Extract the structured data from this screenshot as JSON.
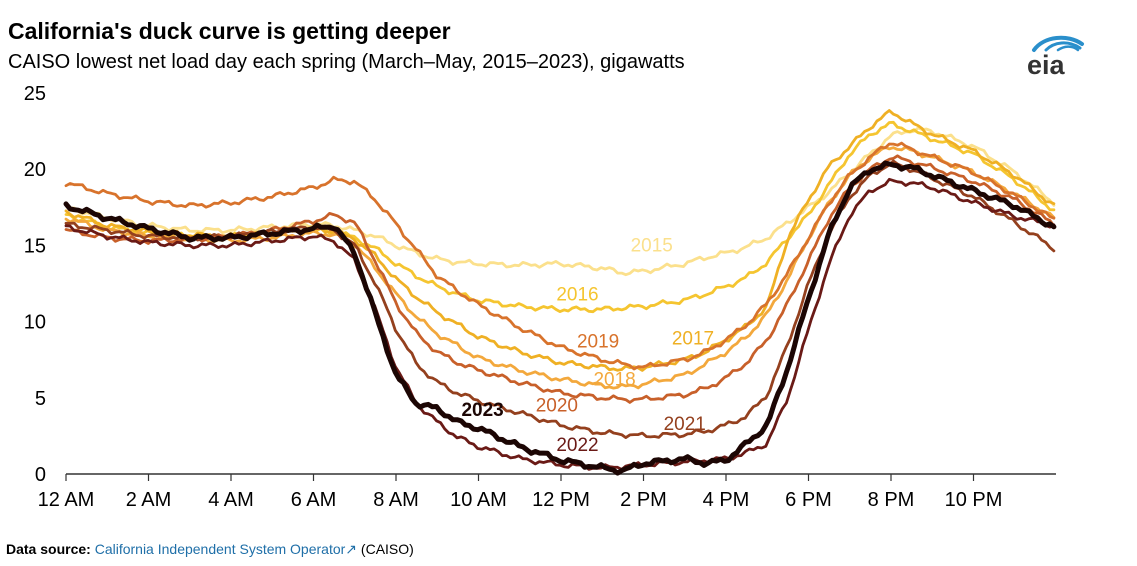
{
  "title": "California's duck curve is getting deeper",
  "subtitle": "CAISO lowest net load day each spring (March–May, 2015–2023), gigawatts",
  "logo_text": "eia",
  "source": {
    "label": "Data source:",
    "link_text": "California Independent System Operator",
    "suffix": "(CAISO)"
  },
  "colors": {
    "2015": "#fbe08c",
    "2016": "#f5c530",
    "2017": "#efb024",
    "2018": "#f3a83c",
    "2019": "#d8732c",
    "2020": "#c8602a",
    "2021": "#94401e",
    "2022": "#6a1a16",
    "2023": "#1c0604",
    "logo": "#2a8fcb"
  },
  "chart_data": {
    "type": "line",
    "x_ticks": [
      "12 AM",
      "2 AM",
      "4 AM",
      "6 AM",
      "8 AM",
      "10 AM",
      "12 PM",
      "2 PM",
      "4 PM",
      "6 PM",
      "8 PM",
      "10 PM"
    ],
    "y_ticks": [
      "0",
      "5",
      "10",
      "15",
      "20",
      "25"
    ],
    "ylim": [
      0,
      25
    ],
    "xlim_hours": [
      0,
      24
    ],
    "grid": false,
    "x": [
      0,
      1,
      2,
      3,
      4,
      5,
      6,
      6.5,
      7,
      7.5,
      8,
      8.5,
      9,
      9.5,
      10,
      11,
      12,
      13,
      13.5,
      14,
      15,
      15.5,
      16,
      16.5,
      17,
      17.5,
      18,
      18.5,
      19,
      19.5,
      20,
      20.5,
      21,
      22,
      23,
      23.95
    ],
    "series": [
      {
        "name": "2015",
        "values": [
          17.5,
          16.8,
          16.3,
          16.0,
          16.0,
          16.2,
          16.4,
          16.3,
          16.0,
          15.6,
          15.0,
          14.5,
          14.1,
          13.9,
          13.8,
          13.7,
          13.8,
          13.5,
          13.2,
          13.3,
          13.8,
          14.2,
          14.5,
          14.9,
          15.5,
          16.5,
          17.5,
          18.5,
          19.8,
          21.0,
          22.2,
          22.6,
          22.5,
          21.5,
          19.8,
          17.8
        ]
      },
      {
        "name": "2016",
        "values": [
          17.0,
          16.2,
          15.8,
          15.6,
          15.6,
          15.8,
          16.0,
          15.9,
          15.5,
          14.8,
          13.8,
          13.0,
          12.3,
          11.8,
          11.4,
          11.0,
          10.8,
          10.8,
          10.9,
          11.0,
          11.4,
          11.8,
          12.3,
          12.9,
          13.9,
          15.5,
          17.0,
          19.0,
          21.0,
          22.3,
          23.0,
          22.5,
          22.0,
          21.0,
          19.3,
          17.3
        ]
      },
      {
        "name": "2017",
        "values": [
          17.2,
          16.3,
          15.9,
          15.7,
          15.6,
          15.8,
          16.1,
          15.9,
          15.4,
          14.3,
          12.8,
          11.6,
          10.6,
          9.8,
          9.0,
          8.0,
          7.3,
          7.0,
          6.9,
          7.0,
          7.5,
          8.0,
          8.8,
          9.7,
          11.0,
          15.5,
          18.0,
          20.2,
          21.5,
          22.8,
          23.8,
          23.0,
          22.3,
          21.2,
          19.6,
          17.6
        ]
      },
      {
        "name": "2018",
        "values": [
          16.8,
          16.0,
          15.6,
          15.4,
          15.3,
          15.5,
          15.8,
          15.7,
          15.1,
          13.5,
          11.8,
          10.3,
          9.2,
          8.4,
          7.6,
          6.8,
          6.2,
          5.8,
          5.7,
          5.9,
          6.5,
          7.2,
          8.0,
          9.0,
          10.5,
          12.8,
          15.5,
          17.8,
          19.6,
          20.8,
          21.5,
          21.2,
          20.8,
          19.8,
          18.4,
          16.8
        ]
      },
      {
        "name": "2019",
        "values": [
          19.1,
          18.4,
          17.9,
          17.6,
          17.8,
          18.2,
          18.8,
          19.3,
          19.2,
          18.0,
          16.4,
          14.7,
          13.0,
          12.0,
          11.1,
          9.6,
          8.3,
          7.5,
          7.2,
          7.0,
          7.5,
          8.0,
          8.8,
          9.8,
          11.2,
          13.2,
          15.5,
          17.8,
          19.6,
          20.8,
          21.8,
          21.3,
          20.8,
          19.8,
          18.3,
          16.7
        ]
      },
      {
        "name": "2020",
        "values": [
          16.0,
          15.5,
          15.3,
          15.4,
          15.6,
          16.0,
          16.6,
          17.0,
          16.5,
          14.0,
          11.2,
          9.2,
          8.0,
          7.3,
          6.8,
          6.0,
          5.3,
          5.0,
          4.9,
          4.9,
          5.2,
          5.6,
          6.3,
          7.3,
          8.8,
          11.2,
          14.0,
          16.8,
          18.8,
          20.0,
          20.8,
          20.5,
          20.1,
          19.2,
          18.0,
          16.4
        ]
      },
      {
        "name": "2021",
        "values": [
          16.4,
          16.0,
          15.6,
          15.5,
          15.6,
          15.9,
          16.2,
          16.0,
          15.0,
          12.5,
          9.5,
          7.2,
          6.0,
          5.3,
          4.8,
          4.0,
          3.2,
          2.7,
          2.6,
          2.5,
          2.6,
          2.8,
          3.2,
          3.8,
          5.2,
          8.5,
          12.5,
          15.8,
          18.2,
          19.6,
          20.4,
          20.0,
          19.4,
          18.2,
          16.5,
          14.8
        ]
      },
      {
        "name": "2022",
        "values": [
          16.2,
          15.6,
          15.2,
          15.0,
          15.0,
          15.3,
          15.6,
          15.3,
          14.0,
          10.8,
          7.0,
          4.6,
          3.4,
          2.4,
          1.8,
          1.0,
          0.6,
          0.4,
          0.5,
          0.6,
          0.8,
          0.9,
          1.0,
          1.4,
          2.0,
          5.0,
          9.5,
          13.8,
          17.0,
          18.6,
          19.2,
          19.1,
          18.8,
          17.8,
          16.9,
          16.3
        ]
      },
      {
        "name": "2023",
        "values": [
          17.6,
          16.8,
          16.1,
          15.5,
          15.5,
          15.8,
          16.1,
          16.3,
          14.5,
          10.5,
          6.5,
          4.6,
          4.3,
          3.4,
          3.0,
          1.8,
          0.9,
          0.4,
          0.2,
          0.7,
          1.0,
          0.7,
          0.9,
          2.0,
          3.2,
          7.0,
          11.5,
          15.8,
          18.8,
          20.0,
          20.3,
          20.1,
          19.6,
          18.6,
          17.6,
          16.2
        ]
      }
    ]
  }
}
